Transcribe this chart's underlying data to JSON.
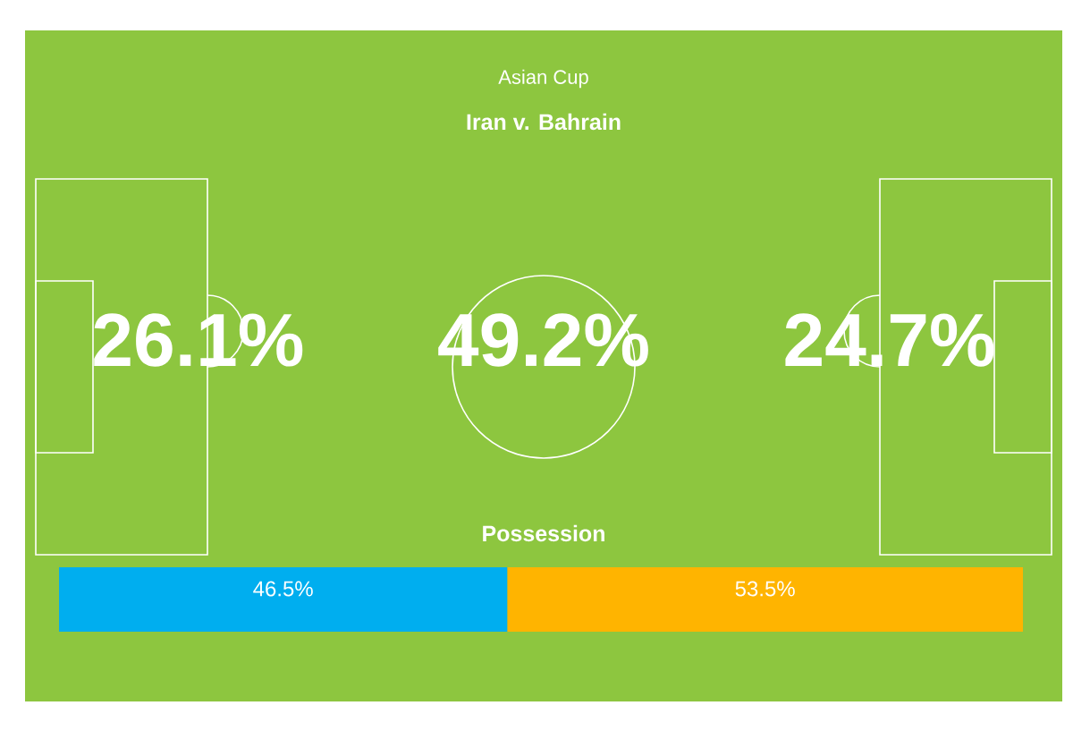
{
  "chart_data": [
    {
      "type": "other",
      "title": "Asian Cup",
      "subtitle": "Iran v. Bahrain",
      "annotations": [
        "26.1%",
        "49.2%",
        "24.7%"
      ]
    },
    {
      "type": "bar",
      "title": "Possession",
      "orientation": "horizontal",
      "stacked": true,
      "categories": [
        null
      ],
      "series": [
        {
          "color": "#00aeef",
          "values": [
            46.5
          ],
          "value_labels": [
            "46.5%"
          ]
        },
        {
          "color": "#ffb400",
          "values": [
            53.5
          ],
          "value_labels": [
            "53.5%"
          ]
        }
      ]
    }
  ]
}
